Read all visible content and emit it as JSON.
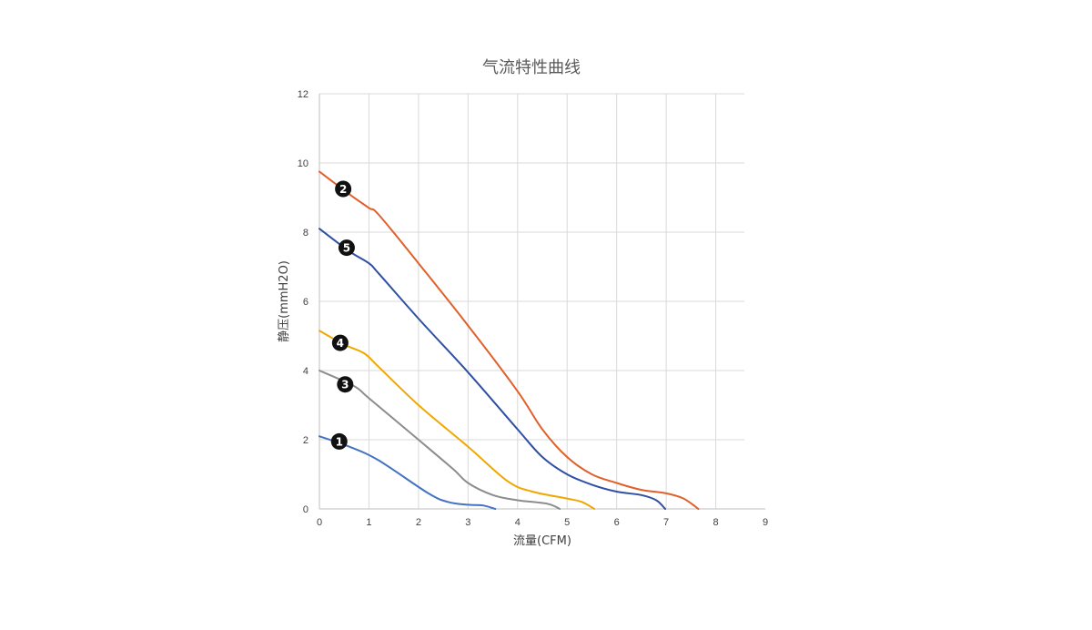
{
  "chart_data": {
    "type": "line",
    "title": "气流特性曲线",
    "xlabel": "流量(CFM)",
    "ylabel": "静压(mmH2O)",
    "xlim": [
      0,
      9
    ],
    "ylim": [
      0,
      12
    ],
    "xticks": [
      0,
      1,
      2,
      3,
      4,
      5,
      6,
      7,
      8,
      9
    ],
    "yticks": [
      0,
      2,
      4,
      6,
      8,
      10,
      12
    ],
    "grid": true,
    "legend": "none",
    "series": [
      {
        "marker": "1",
        "color": "#4472C4",
        "points": [
          [
            0,
            2.1
          ],
          [
            0.6,
            1.8
          ],
          [
            1.2,
            1.4
          ],
          [
            2.2,
            0.45
          ],
          [
            2.6,
            0.2
          ],
          [
            3.0,
            0.12
          ],
          [
            3.3,
            0.1
          ],
          [
            3.55,
            0
          ]
        ],
        "marker_at": [
          0.4,
          1.95
        ]
      },
      {
        "marker": "2",
        "color": "#E0602A",
        "points": [
          [
            0,
            9.75
          ],
          [
            0.6,
            9.1
          ],
          [
            1.0,
            8.7
          ],
          [
            1.2,
            8.5
          ],
          [
            2.0,
            7.1
          ],
          [
            3.0,
            5.3
          ],
          [
            4.0,
            3.4
          ],
          [
            4.5,
            2.3
          ],
          [
            5.0,
            1.5
          ],
          [
            5.5,
            1.0
          ],
          [
            6.0,
            0.75
          ],
          [
            6.5,
            0.55
          ],
          [
            7.0,
            0.45
          ],
          [
            7.35,
            0.3
          ],
          [
            7.65,
            0
          ]
        ],
        "marker_at": [
          0.48,
          9.25
        ]
      },
      {
        "marker": "3",
        "color": "#8C8C8C",
        "points": [
          [
            0,
            4.0
          ],
          [
            0.7,
            3.55
          ],
          [
            1.0,
            3.2
          ],
          [
            2.0,
            2.0
          ],
          [
            2.7,
            1.15
          ],
          [
            3.0,
            0.75
          ],
          [
            3.5,
            0.4
          ],
          [
            4.0,
            0.25
          ],
          [
            4.6,
            0.15
          ],
          [
            4.85,
            0
          ]
        ],
        "marker_at": [
          0.52,
          3.6
        ]
      },
      {
        "marker": "4",
        "color": "#F0A800",
        "points": [
          [
            0,
            5.15
          ],
          [
            0.5,
            4.75
          ],
          [
            0.9,
            4.5
          ],
          [
            1.2,
            4.1
          ],
          [
            2.0,
            3.0
          ],
          [
            3.0,
            1.8
          ],
          [
            3.8,
            0.8
          ],
          [
            4.3,
            0.5
          ],
          [
            5.0,
            0.3
          ],
          [
            5.3,
            0.2
          ],
          [
            5.55,
            0
          ]
        ],
        "marker_at": [
          0.42,
          4.8
        ]
      },
      {
        "marker": "5",
        "color": "#2E4FA3",
        "points": [
          [
            0,
            8.1
          ],
          [
            0.6,
            7.45
          ],
          [
            1.0,
            7.1
          ],
          [
            1.2,
            6.8
          ],
          [
            2.0,
            5.5
          ],
          [
            3.0,
            3.95
          ],
          [
            4.0,
            2.3
          ],
          [
            4.5,
            1.5
          ],
          [
            5.0,
            1.0
          ],
          [
            5.5,
            0.7
          ],
          [
            6.0,
            0.5
          ],
          [
            6.5,
            0.4
          ],
          [
            6.8,
            0.25
          ],
          [
            6.98,
            0
          ]
        ],
        "marker_at": [
          0.55,
          7.55
        ]
      }
    ]
  }
}
